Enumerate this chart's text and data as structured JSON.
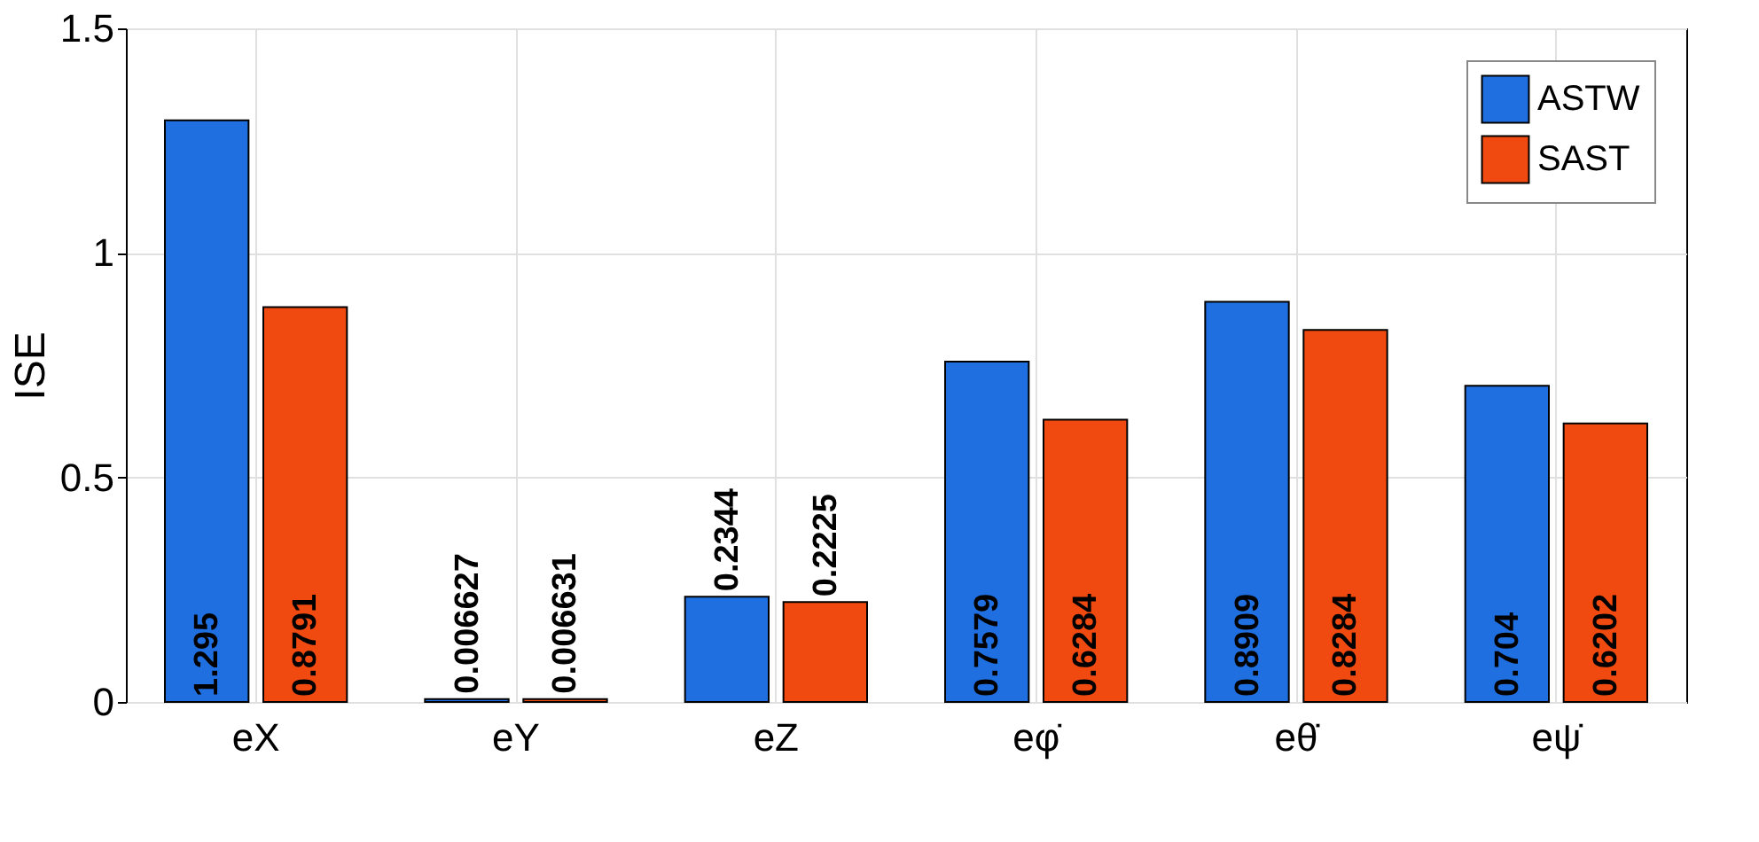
{
  "chart_data": {
    "type": "bar",
    "ylabel": "ISE",
    "categories": [
      "eX",
      "eY",
      "eZ",
      "eφ̇",
      "eθ̇",
      "eψ̇"
    ],
    "series": [
      {
        "name": "ASTW",
        "color": "#1f6fe0",
        "values": [
          1.295,
          0.006627,
          0.2344,
          0.7579,
          0.8909,
          0.704
        ]
      },
      {
        "name": "SAST",
        "color": "#f04a10",
        "values": [
          0.8791,
          0.006631,
          0.2225,
          0.6284,
          0.8284,
          0.6202
        ]
      }
    ],
    "ylim": [
      0,
      1.5
    ],
    "yticks": [
      0,
      0.5,
      1,
      1.5
    ],
    "grid": true,
    "legend": "top right",
    "data_labels": true
  }
}
